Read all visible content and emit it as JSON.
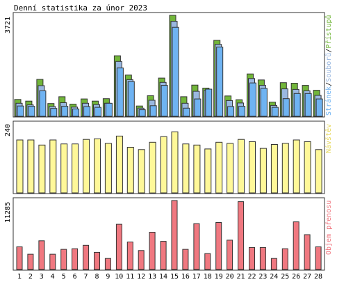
{
  "title": "Denní statistika za únor 2023",
  "colors": {
    "pristupu": "#72b63a",
    "souboru": "#9ab8e0",
    "stranek": "#6fb3f2",
    "navstev": "#fff899",
    "objem": "#f07880",
    "weekend_label": "#72b63a",
    "weekday_label": "#000000",
    "bar_border": "#333333",
    "frame": "#333333"
  },
  "chart_data": [
    {
      "type": "bar",
      "name": "hits",
      "ymax_label": "3721",
      "ylim": [
        0,
        3721
      ],
      "legend": [
        {
          "key": "pristupu",
          "label": "Přístupů"
        },
        {
          "key": "souboru",
          "label": "Souborů"
        },
        {
          "key": "stranek",
          "label": "Stránek"
        }
      ],
      "legend_separator": "/",
      "series": [
        {
          "key": "pristupu",
          "values": [
            620,
            560,
            1360,
            470,
            720,
            450,
            640,
            560,
            650,
            2230,
            1520,
            380,
            760,
            1410,
            3721,
            720,
            1150,
            1040,
            2800,
            750,
            610,
            1560,
            1340,
            520,
            1240,
            1220,
            1140,
            960
          ]
        },
        {
          "key": "souboru",
          "values": [
            480,
            420,
            1130,
            360,
            500,
            340,
            480,
            430,
            480,
            2020,
            1350,
            300,
            590,
            1250,
            3500,
            480,
            920,
            960,
            2650,
            580,
            490,
            1390,
            1140,
            400,
            1010,
            990,
            940,
            770
          ]
        },
        {
          "key": "stranek",
          "values": [
            380,
            370,
            940,
            290,
            370,
            270,
            360,
            330,
            480,
            1780,
            1280,
            240,
            390,
            1140,
            3280,
            300,
            640,
            1000,
            2550,
            360,
            370,
            1230,
            1030,
            330,
            650,
            840,
            840,
            640
          ]
        }
      ]
    },
    {
      "type": "bar",
      "name": "visits",
      "ymax_label": "240",
      "ylim": [
        0,
        240
      ],
      "legend": [
        {
          "key": "navstev",
          "label": "Návštěv"
        }
      ],
      "series": [
        {
          "key": "navstev",
          "values": [
            188,
            188,
            170,
            188,
            174,
            174,
            190,
            192,
            176,
            202,
            162,
            154,
            180,
            200,
            217,
            174,
            170,
            156,
            180,
            176,
            190,
            182,
            158,
            172,
            176,
            188,
            182,
            154
          ]
        }
      ]
    },
    {
      "type": "bar",
      "name": "volume",
      "ymax_label": "11285",
      "ylim": [
        0,
        11285
      ],
      "legend": [
        {
          "key": "objem",
          "label": "Objem přenosu"
        }
      ],
      "series": [
        {
          "key": "objem",
          "values": [
            3700,
            2500,
            4700,
            2500,
            3300,
            3400,
            3950,
            2800,
            1800,
            7400,
            4500,
            3100,
            6100,
            4600,
            11285,
            3300,
            7500,
            2600,
            7700,
            4800,
            11100,
            3600,
            3600,
            1800,
            3400,
            7800,
            5700,
            3700
          ]
        }
      ]
    }
  ],
  "days": [
    "1",
    "2",
    "3",
    "4",
    "5",
    "6",
    "7",
    "8",
    "9",
    "10",
    "11",
    "12",
    "13",
    "14",
    "15",
    "16",
    "17",
    "18",
    "19",
    "20",
    "21",
    "22",
    "23",
    "24",
    "25",
    "26",
    "27",
    "28"
  ],
  "weekend_days": [
    "4",
    "5",
    "11",
    "12",
    "18",
    "19",
    "25",
    "26"
  ]
}
